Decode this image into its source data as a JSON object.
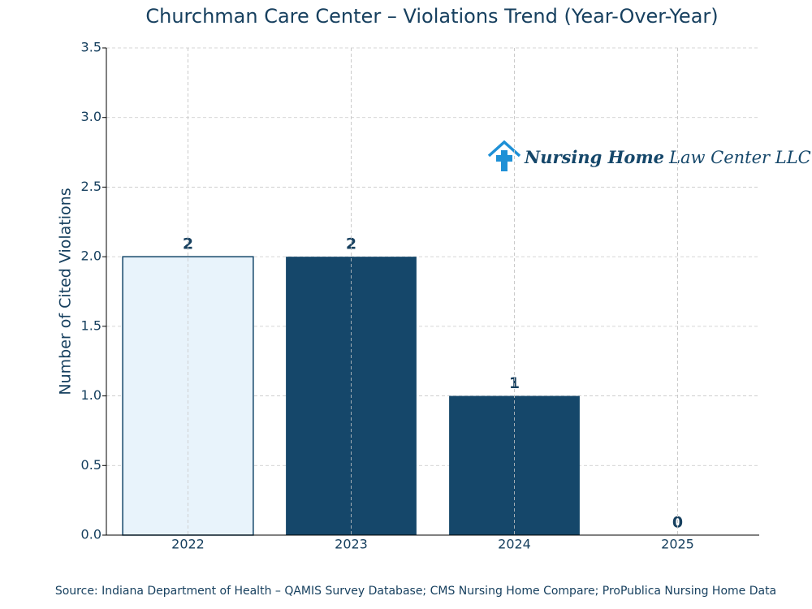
{
  "chart_data": {
    "type": "bar",
    "title": "Churchman Care Center – Violations Trend (Year-Over-Year)",
    "y_label": "Number of Cited Violations",
    "categories": [
      "2022",
      "2023",
      "2024",
      "2025"
    ],
    "values": [
      2,
      2,
      1,
      0
    ],
    "colors": [
      "#e8f3fb",
      "#15476a",
      "#15476a",
      "#15476a"
    ],
    "edge_color": "#15476a",
    "ylim": [
      0,
      3.5
    ],
    "yticks": [
      {
        "value": 0,
        "label": "0.0"
      },
      0.5,
      {
        "value": 1,
        "label": "1.0"
      },
      1.5,
      {
        "value": 2,
        "label": "2.0"
      },
      2.5,
      {
        "value": 3,
        "label": "3.0"
      },
      3.5
    ],
    "grid": true,
    "logo": {
      "bold": "Nursing Home",
      "rest": "Law Center LLC"
    },
    "source": "Source: Indiana Department of Health – QAMIS Survey Database; CMS Nursing Home Compare; ProPublica Nursing Home Data"
  }
}
